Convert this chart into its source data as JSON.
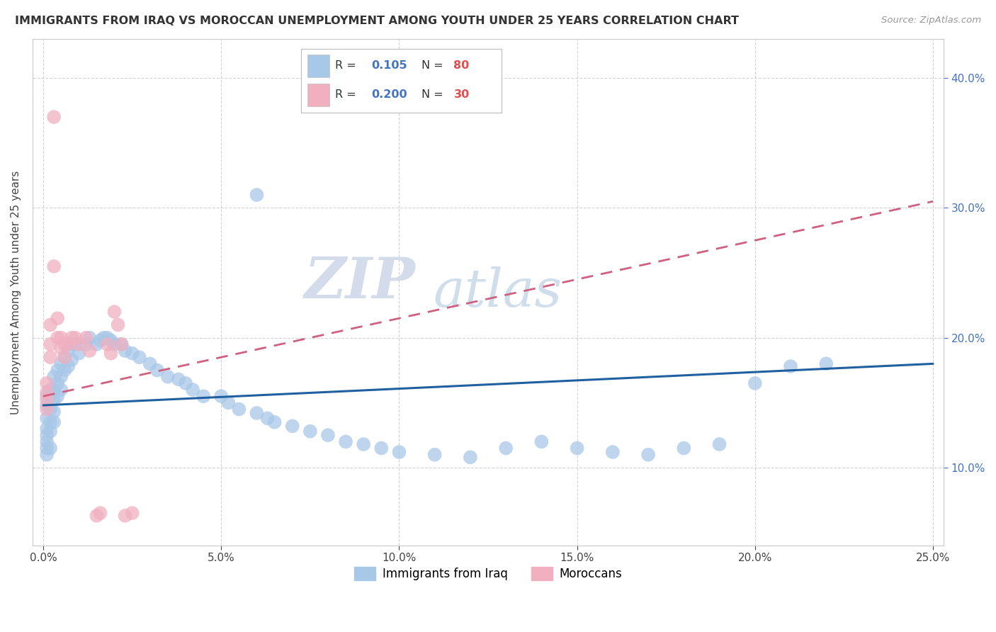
{
  "title": "IMMIGRANTS FROM IRAQ VS MOROCCAN UNEMPLOYMENT AMONG YOUTH UNDER 25 YEARS CORRELATION CHART",
  "source": "Source: ZipAtlas.com",
  "ylabel": "Unemployment Among Youth under 25 years",
  "xlim": [
    -0.003,
    0.253
  ],
  "ylim": [
    0.04,
    0.43
  ],
  "xticks": [
    0.0,
    0.05,
    0.1,
    0.15,
    0.2,
    0.25
  ],
  "yticks": [
    0.1,
    0.2,
    0.3,
    0.4
  ],
  "ytick_labels_right": [
    "10.0%",
    "20.0%",
    "30.0%",
    "40.0%"
  ],
  "xtick_labels": [
    "0.0%",
    "5.0%",
    "10.0%",
    "15.0%",
    "20.0%",
    "25.0%"
  ],
  "blue_color": "#a8c8e8",
  "pink_color": "#f0b0c0",
  "blue_line_color": "#2060a0",
  "pink_line_color": "#d06080",
  "watermark_zip": "ZIP",
  "watermark_atlas": "atlas",
  "blue_points_x": [
    0.001,
    0.001,
    0.001,
    0.001,
    0.001,
    0.001,
    0.001,
    0.001,
    0.002,
    0.002,
    0.002,
    0.002,
    0.002,
    0.002,
    0.003,
    0.003,
    0.003,
    0.003,
    0.003,
    0.004,
    0.004,
    0.004,
    0.005,
    0.005,
    0.005,
    0.006,
    0.006,
    0.007,
    0.007,
    0.008,
    0.008,
    0.009,
    0.01,
    0.012,
    0.013,
    0.015,
    0.016,
    0.017,
    0.018,
    0.019,
    0.02,
    0.022,
    0.023,
    0.025,
    0.027,
    0.03,
    0.032,
    0.035,
    0.038,
    0.04,
    0.042,
    0.045,
    0.05,
    0.052,
    0.055,
    0.06,
    0.063,
    0.065,
    0.07,
    0.075,
    0.08,
    0.085,
    0.09,
    0.095,
    0.1,
    0.11,
    0.12,
    0.13,
    0.14,
    0.15,
    0.16,
    0.17,
    0.18,
    0.19,
    0.2,
    0.21,
    0.22,
    0.06
  ],
  "blue_points_y": [
    0.155,
    0.148,
    0.138,
    0.13,
    0.125,
    0.12,
    0.115,
    0.11,
    0.16,
    0.155,
    0.145,
    0.135,
    0.128,
    0.115,
    0.17,
    0.16,
    0.152,
    0.143,
    0.135,
    0.175,
    0.165,
    0.155,
    0.18,
    0.17,
    0.16,
    0.185,
    0.175,
    0.19,
    0.178,
    0.195,
    0.183,
    0.195,
    0.188,
    0.195,
    0.2,
    0.195,
    0.198,
    0.2,
    0.2,
    0.198,
    0.195,
    0.195,
    0.19,
    0.188,
    0.185,
    0.18,
    0.175,
    0.17,
    0.168,
    0.165,
    0.16,
    0.155,
    0.155,
    0.15,
    0.145,
    0.142,
    0.138,
    0.135,
    0.132,
    0.128,
    0.125,
    0.12,
    0.118,
    0.115,
    0.112,
    0.11,
    0.108,
    0.115,
    0.12,
    0.115,
    0.112,
    0.11,
    0.115,
    0.118,
    0.165,
    0.178,
    0.18,
    0.31
  ],
  "pink_points_x": [
    0.001,
    0.001,
    0.001,
    0.001,
    0.002,
    0.002,
    0.002,
    0.003,
    0.003,
    0.004,
    0.004,
    0.005,
    0.005,
    0.006,
    0.006,
    0.007,
    0.008,
    0.009,
    0.01,
    0.012,
    0.013,
    0.015,
    0.016,
    0.018,
    0.019,
    0.02,
    0.021,
    0.022,
    0.023,
    0.025
  ],
  "pink_points_y": [
    0.165,
    0.158,
    0.152,
    0.145,
    0.21,
    0.195,
    0.185,
    0.37,
    0.255,
    0.215,
    0.2,
    0.2,
    0.192,
    0.195,
    0.185,
    0.195,
    0.2,
    0.2,
    0.195,
    0.2,
    0.19,
    0.063,
    0.065,
    0.195,
    0.188,
    0.22,
    0.21,
    0.195,
    0.063,
    0.065
  ],
  "blue_trend_x": [
    0.0,
    0.25
  ],
  "blue_trend_y": [
    0.148,
    0.18
  ],
  "pink_trend_x": [
    0.0,
    0.25
  ],
  "pink_trend_y": [
    0.155,
    0.305
  ]
}
